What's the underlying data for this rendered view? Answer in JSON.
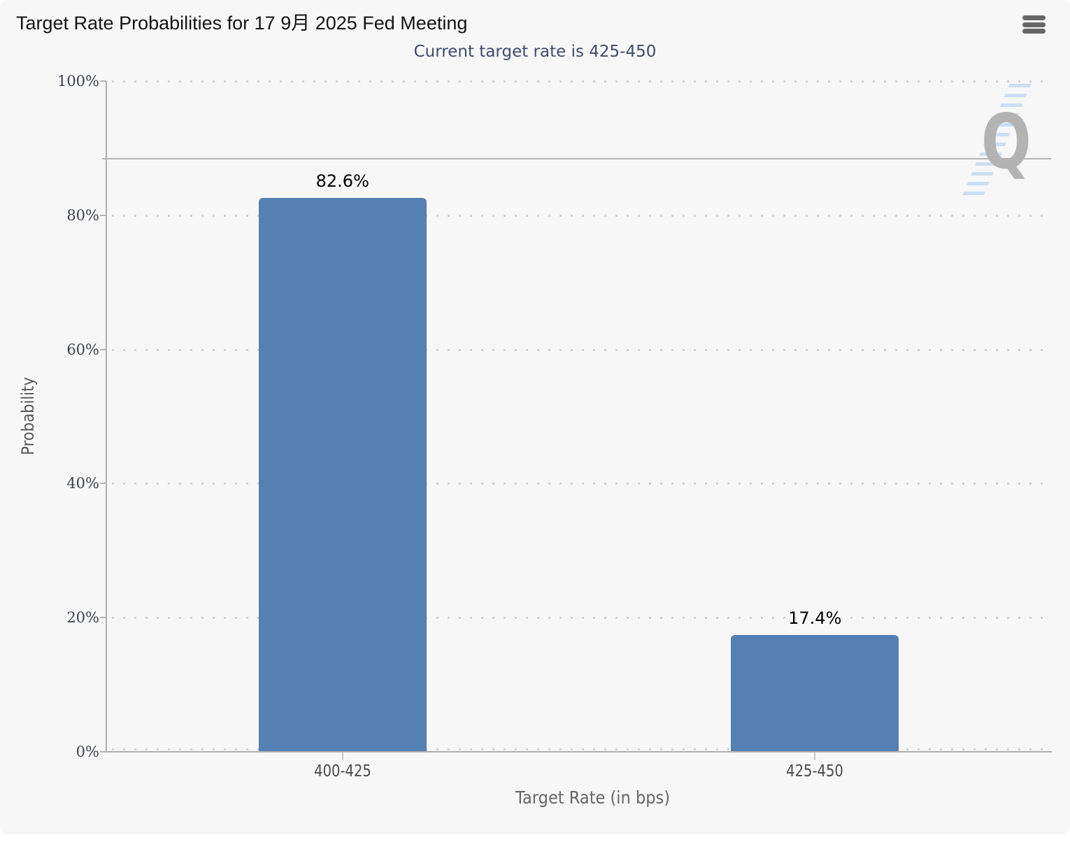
{
  "chart": {
    "title": "Target Rate Probabilities for 17 9月 2025 Fed Meeting",
    "subtitle": "Current target rate is 425-450",
    "menu_icon": "hamburger-icon",
    "watermark_letter": "Q"
  },
  "chart_data": {
    "type": "bar",
    "title": "Target Rate Probabilities for 17 9月 2025 Fed Meeting",
    "subtitle": "Current target rate is 425-450",
    "categories": [
      "400-425",
      "425-450"
    ],
    "series": [
      {
        "name": "Probability",
        "values": [
          82.6,
          17.4
        ]
      }
    ],
    "value_labels": [
      "82.6%",
      "17.4%"
    ],
    "xlabel": "Target Rate (in bps)",
    "ylabel": "Probability",
    "ylim": [
      0,
      100
    ],
    "ytick_values": [
      0,
      20,
      40,
      60,
      80,
      100
    ],
    "ytick_labels": [
      "0%",
      "20%",
      "40%",
      "60%",
      "80%",
      "100%"
    ],
    "grid": "horizontal-dotted",
    "legend": "none",
    "reference_line_value": 88.4,
    "colors": {
      "bar": "#5480b4",
      "background": "#f7f7f7",
      "axis_line": "#b0b0b0",
      "grid_dots": "#d2d2d2",
      "title_text": "#141414",
      "subtitle_text": "#3d4b6e",
      "ytick_text": "#3e4150",
      "xtick_text": "#4a4a4a",
      "axis_title_text": "#666666",
      "menu_icon": "#666666",
      "watermark_gray": "#b3b3b3",
      "watermark_blue": "#c3daf2"
    }
  }
}
